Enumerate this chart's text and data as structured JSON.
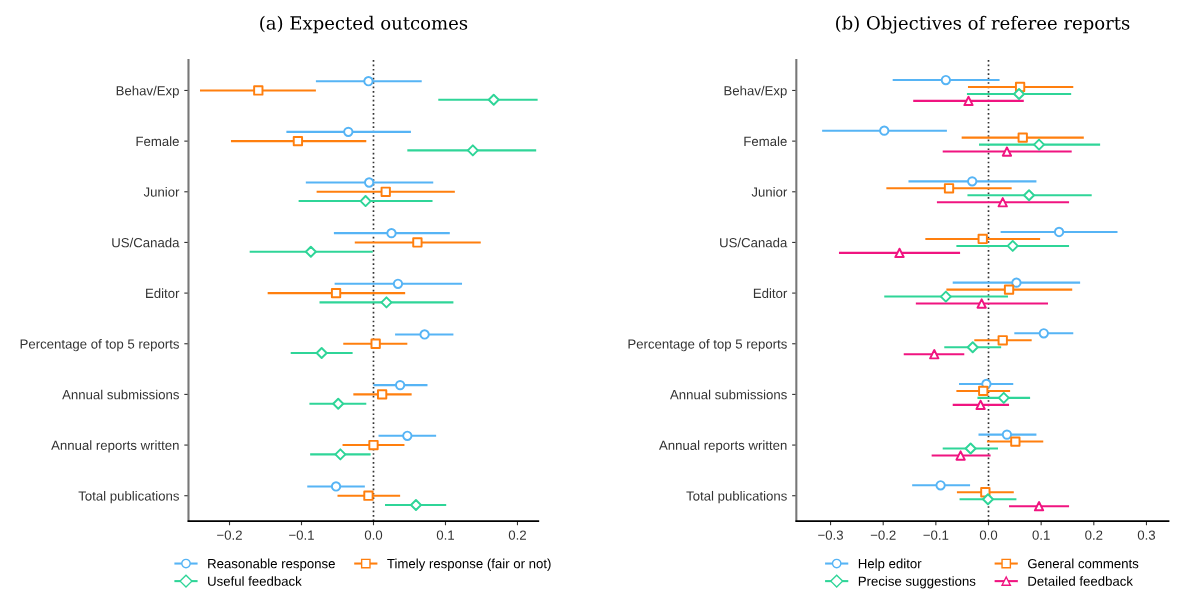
{
  "chart_data": [
    {
      "type": "scatter",
      "orientation": "horizontal",
      "title": "(a) Expected outcomes",
      "categories": [
        "Behav/Exp",
        "Female",
        "Junior",
        "US/Canada",
        "Editor",
        "Percentage of top 5 reports",
        "Annual submissions",
        "Annual reports written",
        "Total publications"
      ],
      "xlim": [
        -0.257,
        0.229
      ],
      "xticks": [
        {
          "value": -0.2,
          "label": "−0.2"
        },
        {
          "value": -0.1,
          "label": "−0.1"
        },
        {
          "value": 0,
          "label": "0.0"
        },
        {
          "value": 0.1,
          "label": "0.1"
        },
        {
          "value": 0.2,
          "label": "0.2"
        }
      ],
      "grid": false,
      "legend": "bottom",
      "line_style": "solid",
      "ref_lines": [
        {
          "axis": "x",
          "value": 0,
          "line_style": "dotted",
          "color": "#333333"
        }
      ],
      "series": [
        {
          "name": "Reasonable response",
          "color": "#56b4f5",
          "marker": "circle",
          "values": [
            -0.007,
            -0.035,
            -0.006,
            0.025,
            0.034,
            0.071,
            0.037,
            0.047,
            -0.052
          ],
          "errors": [
            [
              -0.08,
              0.067
            ],
            [
              -0.121,
              0.052
            ],
            [
              -0.094,
              0.083
            ],
            [
              -0.055,
              0.106
            ],
            [
              -0.054,
              0.123
            ],
            [
              0.03,
              0.111
            ],
            [
              0.0,
              0.075
            ],
            [
              0.007,
              0.087
            ],
            [
              -0.092,
              -0.012
            ]
          ]
        },
        {
          "name": "Timely response (fair or not)",
          "color": "#ff7f0e",
          "marker": "square",
          "values": [
            -0.16,
            -0.105,
            0.017,
            0.061,
            -0.052,
            0.003,
            0.012,
            0.0,
            -0.007
          ],
          "errors": [
            [
              -0.241,
              -0.08
            ],
            [
              -0.198,
              -0.01
            ],
            [
              -0.079,
              0.113
            ],
            [
              -0.026,
              0.149
            ],
            [
              -0.147,
              0.044
            ],
            [
              -0.042,
              0.047
            ],
            [
              -0.028,
              0.053
            ],
            [
              -0.043,
              0.043
            ],
            [
              -0.05,
              0.037
            ]
          ]
        },
        {
          "name": "Useful feedback",
          "color": "#2fd598",
          "marker": "diamond",
          "values": [
            0.167,
            0.138,
            -0.011,
            -0.087,
            0.018,
            -0.072,
            -0.049,
            -0.046,
            0.059
          ],
          "errors": [
            [
              0.09,
              0.228
            ],
            [
              0.047,
              0.226
            ],
            [
              -0.104,
              0.082
            ],
            [
              -0.172,
              -0.001
            ],
            [
              -0.075,
              0.111
            ],
            [
              -0.115,
              -0.029
            ],
            [
              -0.089,
              -0.01
            ],
            [
              -0.088,
              -0.004
            ],
            [
              0.016,
              0.101
            ]
          ]
        }
      ]
    },
    {
      "type": "scatter",
      "orientation": "horizontal",
      "title": "(b) Objectives of referee reports",
      "categories": [
        "Behav/Exp",
        "Female",
        "Junior",
        "US/Canada",
        "Editor",
        "Percentage of top 5 reports",
        "Annual submissions",
        "Annual reports written",
        "Total publications"
      ],
      "xlim": [
        -0.365,
        0.342
      ],
      "xticks": [
        {
          "value": -0.3,
          "label": "−0.3"
        },
        {
          "value": -0.2,
          "label": "−0.2"
        },
        {
          "value": -0.1,
          "label": "−0.1"
        },
        {
          "value": 0,
          "label": "0.0"
        },
        {
          "value": 0.1,
          "label": "0.1"
        },
        {
          "value": 0.2,
          "label": "0.2"
        },
        {
          "value": 0.3,
          "label": "0.3"
        }
      ],
      "grid": false,
      "legend": "bottom",
      "line_style": "solid",
      "ref_lines": [
        {
          "axis": "x",
          "value": 0,
          "line_style": "dotted",
          "color": "#333333"
        }
      ],
      "series": [
        {
          "name": "Help editor",
          "color": "#56b4f5",
          "marker": "circle",
          "values": [
            -0.081,
            -0.198,
            -0.031,
            0.134,
            0.053,
            0.105,
            -0.004,
            0.035,
            -0.091
          ],
          "errors": [
            [
              -0.182,
              0.021
            ],
            [
              -0.316,
              -0.079
            ],
            [
              -0.152,
              0.091
            ],
            [
              0.023,
              0.245
            ],
            [
              -0.068,
              0.174
            ],
            [
              0.049,
              0.161
            ],
            [
              -0.056,
              0.047
            ],
            [
              -0.019,
              0.091
            ],
            [
              -0.145,
              -0.035
            ]
          ]
        },
        {
          "name": "General comments",
          "color": "#ff7f0e",
          "marker": "square",
          "values": [
            0.06,
            0.065,
            -0.075,
            -0.011,
            0.039,
            0.027,
            -0.01,
            0.051,
            -0.006
          ],
          "errors": [
            [
              -0.039,
              0.161
            ],
            [
              -0.051,
              0.181
            ],
            [
              -0.194,
              0.044
            ],
            [
              -0.12,
              0.098
            ],
            [
              -0.08,
              0.159
            ],
            [
              -0.027,
              0.082
            ],
            [
              -0.061,
              0.041
            ],
            [
              -0.003,
              0.104
            ],
            [
              -0.06,
              0.048
            ]
          ]
        },
        {
          "name": "Precise suggestions",
          "color": "#2fd598",
          "marker": "diamond",
          "values": [
            0.058,
            0.096,
            0.077,
            0.046,
            -0.081,
            -0.03,
            0.029,
            -0.034,
            -0.001
          ],
          "errors": [
            [
              -0.041,
              0.157
            ],
            [
              -0.018,
              0.212
            ],
            [
              -0.04,
              0.196
            ],
            [
              -0.061,
              0.153
            ],
            [
              -0.198,
              0.037
            ],
            [
              -0.084,
              0.024
            ],
            [
              -0.021,
              0.079
            ],
            [
              -0.087,
              0.018
            ],
            [
              -0.055,
              0.053
            ]
          ]
        },
        {
          "name": "Detailed feedback",
          "color": "#f01480",
          "marker": "triangle",
          "values": [
            -0.038,
            0.035,
            0.027,
            -0.169,
            -0.013,
            -0.103,
            -0.015,
            -0.053,
            0.096
          ],
          "errors": [
            [
              -0.143,
              0.067
            ],
            [
              -0.087,
              0.158
            ],
            [
              -0.098,
              0.153
            ],
            [
              -0.284,
              -0.054
            ],
            [
              -0.138,
              0.113
            ],
            [
              -0.161,
              -0.046
            ],
            [
              -0.068,
              0.039
            ],
            [
              -0.108,
              0.004
            ],
            [
              0.039,
              0.153
            ]
          ]
        }
      ]
    }
  ]
}
